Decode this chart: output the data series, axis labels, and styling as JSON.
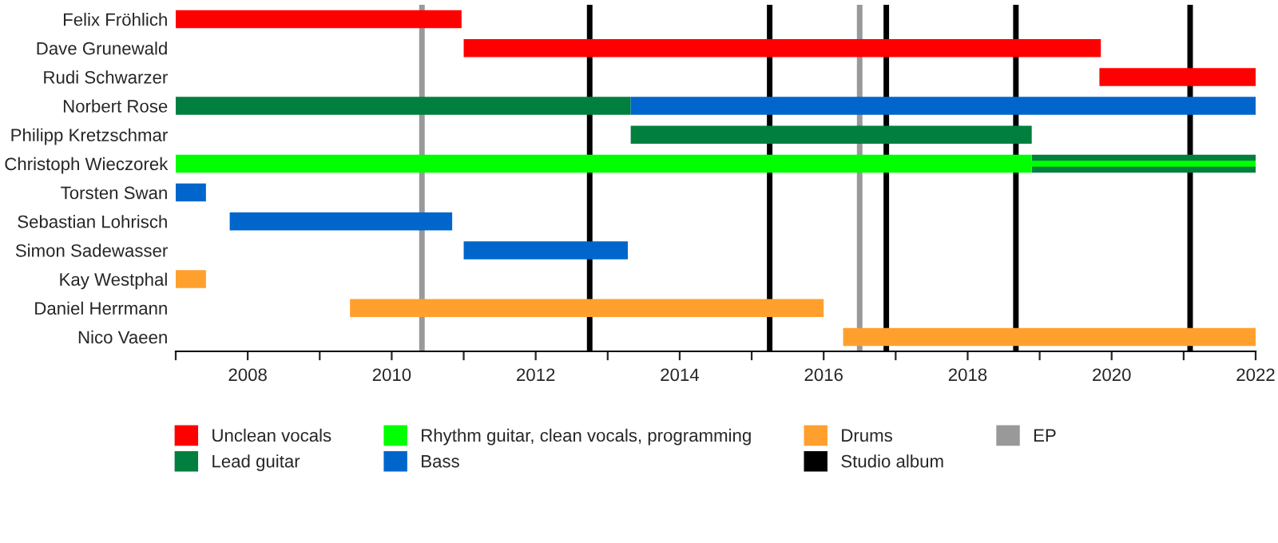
{
  "chart_data": {
    "type": "bar",
    "orientation": "horizontal",
    "categories": [
      "Felix Fröhlich",
      "Dave Grunewald",
      "Rudi Schwarzer",
      "Norbert Rose",
      "Philipp Kretzschmar",
      "Christoph Wieczorek",
      "Torsten Swan",
      "Sebastian Lohrisch",
      "Simon Sadewasser",
      "Kay Westphal",
      "Daniel Herrmann",
      "Nico Vaeen"
    ],
    "series": [
      {
        "name": "Unclean vocals",
        "color": "#ff0000",
        "base": [
          2007,
          2011.0,
          2019.83,
          null,
          null,
          null,
          null,
          null,
          null,
          null,
          null,
          null
        ],
        "values": [
          3.97,
          8.85,
          2.17,
          null,
          null,
          null,
          null,
          null,
          null,
          null,
          null,
          null
        ]
      },
      {
        "name": "Lead guitar",
        "color": "#007f3f",
        "base": [
          null,
          null,
          null,
          2007,
          2013.32,
          2018.89,
          null,
          null,
          null,
          null,
          null,
          null
        ],
        "values": [
          null,
          null,
          null,
          6.32,
          5.57,
          3.11,
          null,
          null,
          null,
          null,
          null,
          null
        ]
      },
      {
        "name": "Rhythm guitar, clean vocals, programming",
        "color": "#00ff00",
        "base": [
          null,
          null,
          null,
          null,
          null,
          2007,
          null,
          null,
          null,
          null,
          null,
          null
        ],
        "values": [
          null,
          null,
          null,
          null,
          null,
          11.89,
          null,
          null,
          null,
          null,
          null,
          null
        ]
      },
      {
        "color": "#00ff00",
        "base": [
          null,
          null,
          null,
          null,
          null,
          2018.89,
          null,
          null,
          null,
          null,
          null,
          null
        ],
        "values": [
          null,
          null,
          null,
          null,
          null,
          3.11,
          null,
          null,
          null,
          null,
          null,
          null
        ]
      },
      {
        "name": "Bass",
        "color": "#0066cc",
        "base": [
          null,
          null,
          null,
          2013.32,
          null,
          null,
          2007,
          2007.75,
          2011.0,
          null,
          null,
          null
        ],
        "values": [
          null,
          null,
          null,
          8.68,
          null,
          null,
          0.42,
          3.09,
          2.28,
          null,
          null,
          null
        ]
      },
      {
        "name": "Drums",
        "color": "#ffa02e",
        "base": [
          null,
          null,
          null,
          null,
          null,
          null,
          null,
          null,
          null,
          2007,
          2009.42,
          2016.27
        ],
        "values": [
          null,
          null,
          null,
          null,
          null,
          null,
          null,
          null,
          null,
          0.42,
          6.58,
          5.73
        ]
      }
    ],
    "ref_lines": [
      {
        "axis": "x",
        "value": 2012.75,
        "label": "Studio album",
        "color": "#000000"
      },
      {
        "axis": "x",
        "value": 2010.42,
        "label": "EP",
        "color": "#999999"
      },
      {
        "axis": "x",
        "value": 2016.5,
        "label": null,
        "color": "#999999"
      },
      {
        "axis": "x",
        "value": 2015.25,
        "label": null,
        "color": "#000000"
      },
      {
        "axis": "x",
        "value": 2016.87,
        "label": null,
        "color": "#000000"
      },
      {
        "axis": "x",
        "value": 2018.67,
        "label": null,
        "color": "#000000"
      },
      {
        "axis": "x",
        "value": 2021.09,
        "label": null,
        "color": "#000000"
      }
    ],
    "xlim": [
      2007,
      2022
    ],
    "xticks": [
      {
        "value": 2007,
        "label": null
      },
      2008,
      {
        "value": 2009,
        "label": null
      },
      2010,
      {
        "value": 2011,
        "label": null
      },
      2012,
      {
        "value": 2013,
        "label": null
      },
      2014,
      {
        "value": 2015,
        "label": null
      },
      2016,
      {
        "value": 2017,
        "label": null
      },
      2018,
      {
        "value": 2019,
        "label": null
      },
      2020,
      {
        "value": 2021,
        "label": null
      },
      2022
    ],
    "legend": "bottom"
  }
}
